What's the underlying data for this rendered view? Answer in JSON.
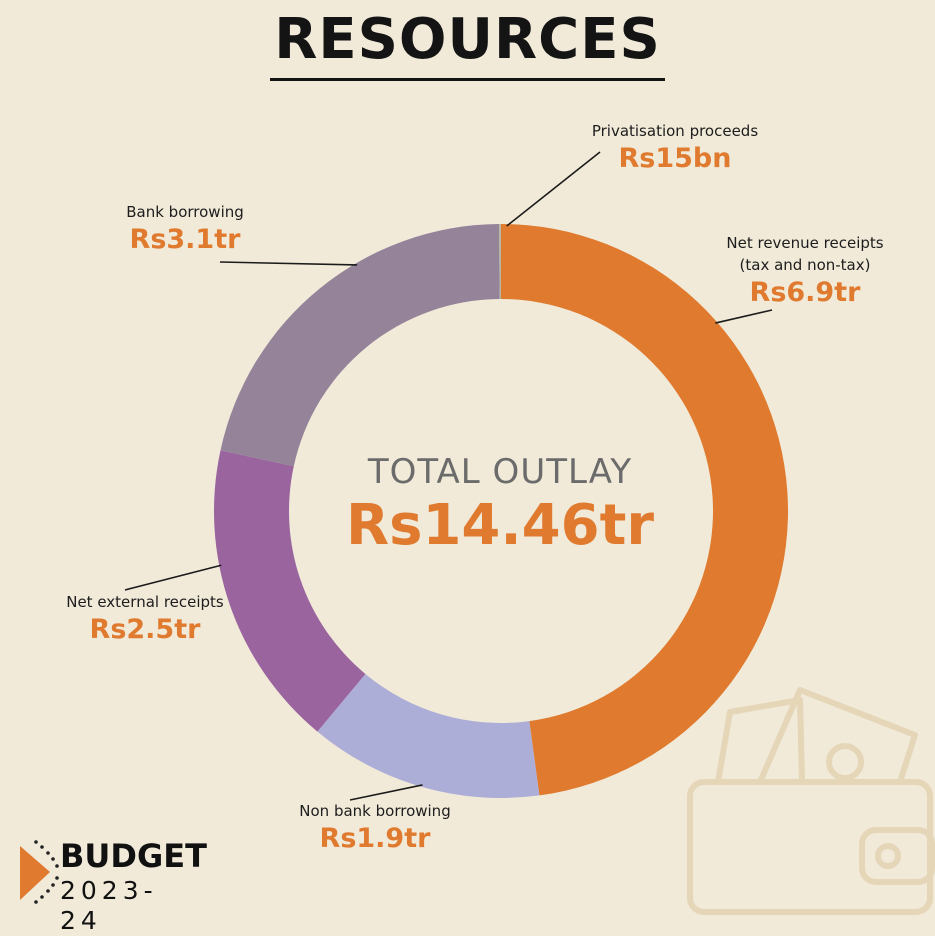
{
  "title": "RESOURCES",
  "center": {
    "label": "TOTAL OUTLAY",
    "value": "Rs14.46tr"
  },
  "brand": {
    "line1": "BUDGET",
    "line2": "2023-24"
  },
  "colors": {
    "background": "#f1ead9",
    "accent": "#df7a2f",
    "net_revenue": "#df7a2f",
    "non_bank": "#adaed8",
    "net_external": "#9a649e",
    "bank": "#948399",
    "privatisation": "#b6b8a5"
  },
  "chart_data": {
    "type": "pie",
    "title": "RESOURCES",
    "unit": "Rs trillion",
    "slices": [
      {
        "name": "Net revenue receipts",
        "sub": "(tax and non-tax)",
        "display": "Rs6.9tr",
        "value": 6.9,
        "color": "#df7a2f"
      },
      {
        "name": "Non bank borrowing",
        "display": "Rs1.9tr",
        "value": 1.9,
        "color": "#adaed8"
      },
      {
        "name": "Net external receipts",
        "display": "Rs2.5tr",
        "value": 2.5,
        "color": "#9a649e"
      },
      {
        "name": "Bank borrowing",
        "display": "Rs3.1tr",
        "value": 3.1,
        "color": "#948399"
      },
      {
        "name": "Privatisation proceeds",
        "display": "Rs15bn",
        "value": 0.015,
        "color": "#b6b8a5"
      }
    ],
    "total": {
      "label": "TOTAL OUTLAY",
      "display": "Rs14.46tr",
      "value": 14.46
    }
  }
}
